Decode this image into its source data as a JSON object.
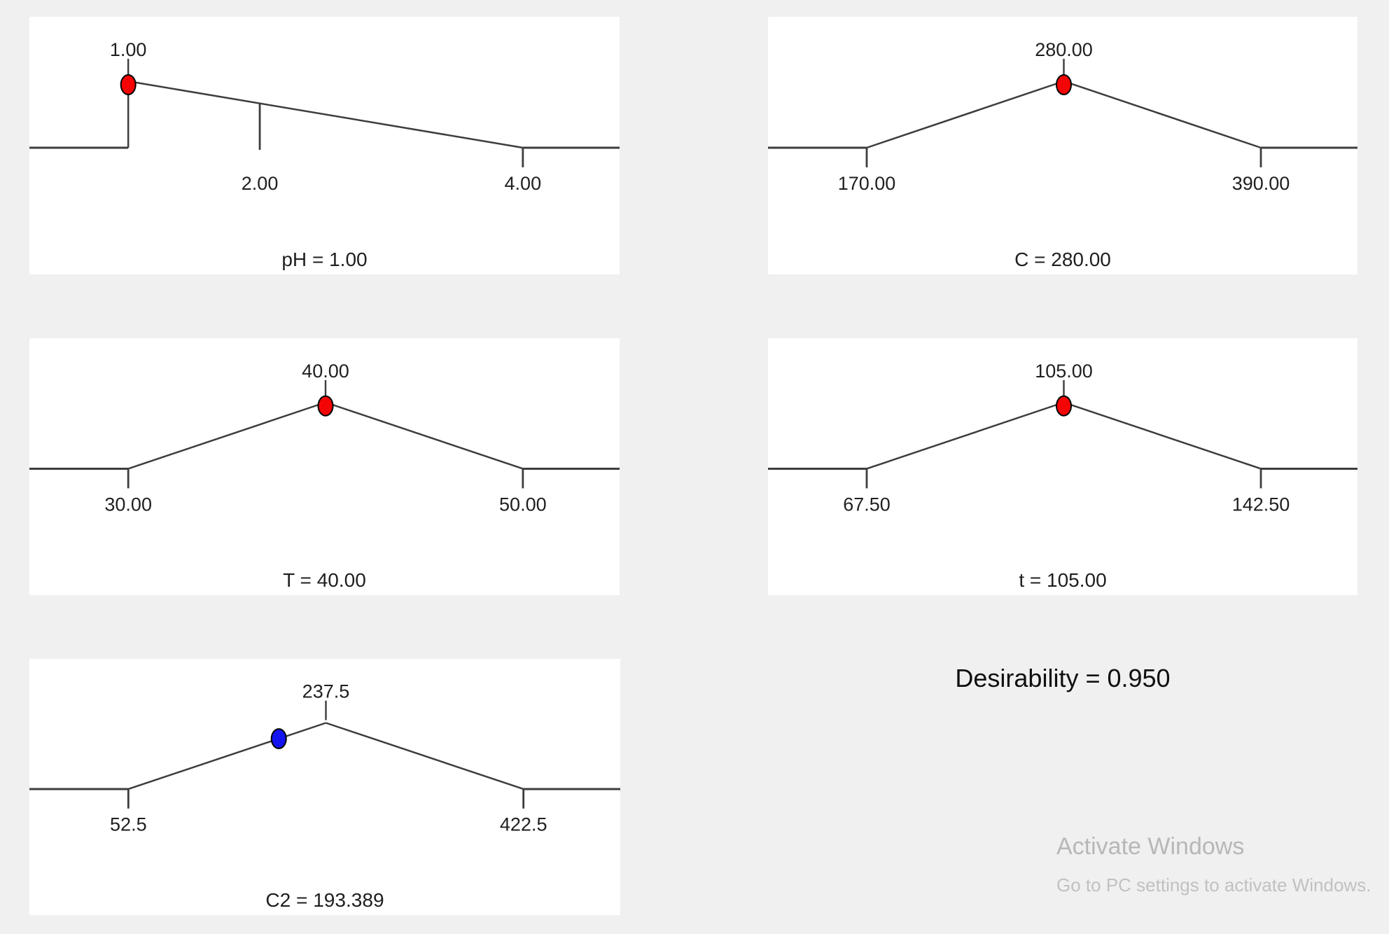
{
  "style": {
    "background": "#f0f0f0",
    "panel_bg": "#ffffff",
    "line_color": "#3d3d3d",
    "text_color": "#1f1f1f",
    "red": "#f40404",
    "blue": "#1414f0",
    "watermark_color": "#b7b7b7"
  },
  "chart_data": [
    {
      "type": "ramp",
      "factor": "pH",
      "value": 1.0,
      "low": 1.0,
      "high": 4.0,
      "peak": 1.0,
      "shape": "left-peak",
      "dot_color": "#f40404",
      "peak_label": "1.00",
      "axis_ticks": [
        {
          "x": 2.0,
          "label": "2.00"
        },
        {
          "x": 4.0,
          "label": "4.00"
        }
      ],
      "factor_label": "pH = 1.00"
    },
    {
      "type": "ramp",
      "factor": "C",
      "value": 280.0,
      "low": 170.0,
      "high": 390.0,
      "peak": 280.0,
      "shape": "triangle",
      "dot_color": "#f40404",
      "peak_label": "280.00",
      "axis_ticks": [
        {
          "x": 170.0,
          "label": "170.00"
        },
        {
          "x": 390.0,
          "label": "390.00"
        }
      ],
      "factor_label": "C = 280.00"
    },
    {
      "type": "ramp",
      "factor": "T",
      "value": 40.0,
      "low": 30.0,
      "high": 50.0,
      "peak": 40.0,
      "shape": "triangle",
      "dot_color": "#f40404",
      "peak_label": "40.00",
      "axis_ticks": [
        {
          "x": 30.0,
          "label": "30.00"
        },
        {
          "x": 50.0,
          "label": "50.00"
        }
      ],
      "factor_label": "T = 40.00"
    },
    {
      "type": "ramp",
      "factor": "t",
      "value": 105.0,
      "low": 67.5,
      "high": 142.5,
      "peak": 105.0,
      "shape": "triangle",
      "dot_color": "#f40404",
      "peak_label": "105.00",
      "axis_ticks": [
        {
          "x": 67.5,
          "label": "67.50"
        },
        {
          "x": 142.5,
          "label": "142.50"
        }
      ],
      "factor_label": "t = 105.00"
    },
    {
      "type": "ramp",
      "factor": "C2",
      "value": 193.389,
      "low": 52.5,
      "high": 422.5,
      "peak": 237.5,
      "shape": "triangle",
      "dot_color": "#1414f0",
      "peak_label": "237.5",
      "axis_ticks": [
        {
          "x": 52.5,
          "label": "52.5"
        },
        {
          "x": 422.5,
          "label": "422.5"
        }
      ],
      "factor_label": "C2 = 193.389"
    }
  ],
  "desirability": {
    "label": "Desirability = 0.950",
    "value": 0.95
  },
  "watermark": {
    "title": "Activate Windows",
    "subtitle": "Go to PC settings to activate Windows."
  }
}
